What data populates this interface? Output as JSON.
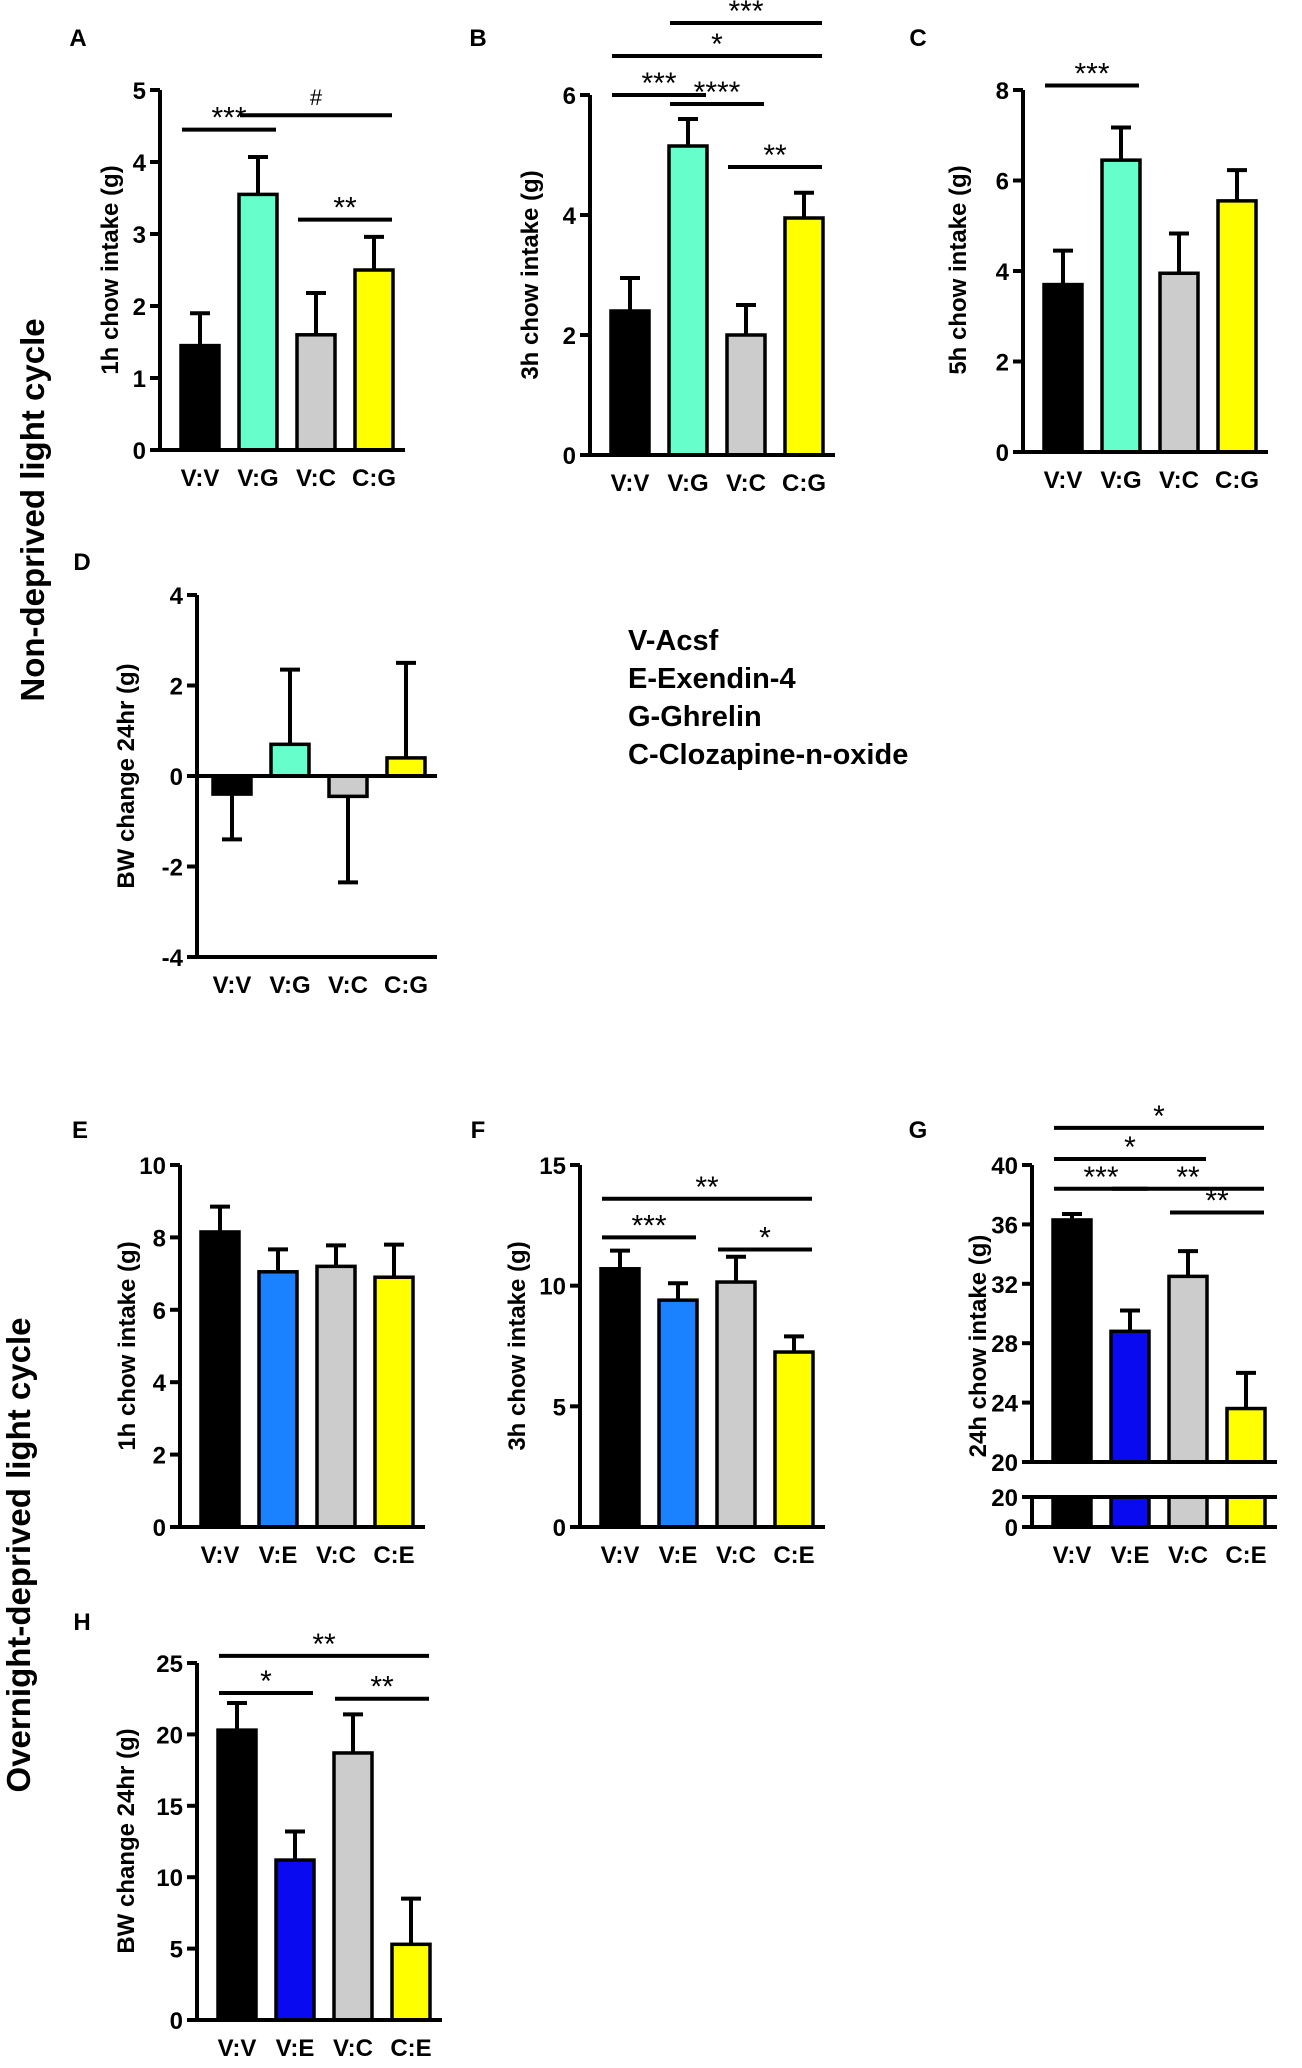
{
  "row_labels": [
    "Non-deprived light cycle",
    "Overnight-deprived light cycle"
  ],
  "legend": [
    "V-Acsf",
    "E-Exendin-4",
    "G-Ghrelin",
    "C-Clozapine-n-oxide"
  ],
  "chart_data": [
    {
      "id": "A",
      "type": "bar",
      "panel_label": "A",
      "ylabel": "1h chow intake (g)",
      "ylim": [
        0,
        5
      ],
      "yticks": [
        0,
        1,
        2,
        3,
        4,
        5
      ],
      "ytick_labels": [
        "0",
        "1",
        "2",
        "3",
        "4",
        "5"
      ],
      "categories": [
        "V:V",
        "V:G",
        "V:C",
        "C:G"
      ],
      "values": [
        1.45,
        3.55,
        1.6,
        2.5
      ],
      "errors": [
        0.45,
        0.52,
        0.58,
        0.46
      ],
      "colors": [
        "#000000",
        "#66ffcc",
        "#cccccc",
        "#ffff00"
      ],
      "annotations": [
        {
          "from": 0,
          "to": 1,
          "y": 4.45,
          "label": "***"
        },
        {
          "from": 1,
          "to": 3,
          "y": 4.65,
          "label": "#"
        },
        {
          "from": 2,
          "to": 3,
          "y": 3.2,
          "label": "**"
        }
      ]
    },
    {
      "id": "B",
      "type": "bar",
      "panel_label": "B",
      "ylabel": "3h chow intake (g)",
      "ylim": [
        0,
        6
      ],
      "yticks": [
        0,
        2,
        4,
        6
      ],
      "ytick_labels": [
        "0",
        "2",
        "4",
        "6"
      ],
      "categories": [
        "V:V",
        "V:G",
        "V:C",
        "C:G"
      ],
      "values": [
        2.4,
        5.15,
        2.0,
        3.95
      ],
      "errors": [
        0.55,
        0.45,
        0.5,
        0.42
      ],
      "colors": [
        "#000000",
        "#66ffcc",
        "#cccccc",
        "#ffff00"
      ],
      "annotations": [
        {
          "from": 0,
          "to": 1,
          "y": 6.0,
          "label": "***"
        },
        {
          "from": 1,
          "to": 2,
          "y": 5.85,
          "label": "****"
        },
        {
          "from": 2,
          "to": 3,
          "y": 4.8,
          "label": "**"
        },
        {
          "from": 0,
          "to": 3,
          "y": 6.65,
          "label": "*"
        },
        {
          "from": 1,
          "to": 3,
          "y": 7.2,
          "label": "***"
        }
      ]
    },
    {
      "id": "C",
      "type": "bar",
      "panel_label": "C",
      "ylabel": "5h chow intake (g)",
      "ylim": [
        0,
        8
      ],
      "yticks": [
        0,
        2,
        4,
        6,
        8
      ],
      "ytick_labels": [
        "0",
        "2",
        "4",
        "6",
        "8"
      ],
      "categories": [
        "V:V",
        "V:G",
        "V:C",
        "C:G"
      ],
      "values": [
        3.7,
        6.45,
        3.95,
        5.55
      ],
      "errors": [
        0.75,
        0.72,
        0.88,
        0.68
      ],
      "colors": [
        "#000000",
        "#66ffcc",
        "#cccccc",
        "#ffff00"
      ],
      "annotations": [
        {
          "from": 0,
          "to": 1,
          "y": 8.1,
          "label": "***"
        }
      ]
    },
    {
      "id": "D",
      "type": "bar",
      "panel_label": "D",
      "ylabel": "BW change 24hr (g)",
      "ylim": [
        -4,
        4
      ],
      "yticks": [
        -4,
        -2,
        0,
        2,
        4
      ],
      "ytick_labels": [
        "-4",
        "-2",
        "0",
        "2",
        "4"
      ],
      "categories": [
        "V:V",
        "V:G",
        "V:C",
        "C:G"
      ],
      "values": [
        -0.4,
        0.7,
        -0.45,
        0.4
      ],
      "errors": [
        1.0,
        1.65,
        1.9,
        2.1
      ],
      "colors": [
        "#000000",
        "#66ffcc",
        "#cccccc",
        "#ffff00"
      ],
      "annotations": []
    },
    {
      "id": "E",
      "type": "bar",
      "panel_label": "E",
      "ylabel": "1h chow intake (g)",
      "ylim": [
        0,
        10
      ],
      "yticks": [
        0,
        2,
        4,
        6,
        8,
        10
      ],
      "ytick_labels": [
        "0",
        "2",
        "4",
        "6",
        "8",
        "10"
      ],
      "categories": [
        "V:V",
        "V:E",
        "V:C",
        "C:E"
      ],
      "values": [
        8.15,
        7.05,
        7.2,
        6.9
      ],
      "errors": [
        0.7,
        0.62,
        0.58,
        0.9
      ],
      "colors": [
        "#000000",
        "#1a82ff",
        "#cccccc",
        "#ffff00"
      ],
      "annotations": []
    },
    {
      "id": "F",
      "type": "bar",
      "panel_label": "F",
      "ylabel": "3h chow intake (g)",
      "ylim": [
        0,
        15
      ],
      "yticks": [
        0,
        5,
        10,
        15
      ],
      "ytick_labels": [
        "0",
        "5",
        "10",
        "15"
      ],
      "categories": [
        "V:V",
        "V:E",
        "V:C",
        "C:E"
      ],
      "values": [
        10.7,
        9.4,
        10.15,
        7.25
      ],
      "errors": [
        0.75,
        0.7,
        1.05,
        0.65
      ],
      "colors": [
        "#000000",
        "#1a82ff",
        "#cccccc",
        "#ffff00"
      ],
      "annotations": [
        {
          "from": 0,
          "to": 1,
          "y": 12.0,
          "label": "***"
        },
        {
          "from": 2,
          "to": 3,
          "y": 11.5,
          "label": "*"
        },
        {
          "from": 0,
          "to": 3,
          "y": 13.6,
          "label": "**"
        }
      ]
    },
    {
      "id": "G",
      "type": "bar",
      "panel_label": "G",
      "ylabel": "24h chow intake (g)",
      "ylim": [
        20,
        40
      ],
      "yticks": [
        20,
        24,
        28,
        32,
        36,
        40
      ],
      "ytick_labels": [
        "20",
        "24",
        "28",
        "32",
        "36",
        "40"
      ],
      "axis_break": true,
      "lower_tick_labels": [
        "0",
        "20"
      ],
      "categories": [
        "V:V",
        "V:E",
        "V:C",
        "C:E"
      ],
      "values": [
        36.3,
        28.8,
        32.5,
        23.6
      ],
      "errors": [
        0.4,
        1.4,
        1.7,
        2.4
      ],
      "colors": [
        "#000000",
        "#0a0af0",
        "#cccccc",
        "#ffff00"
      ],
      "annotations": [
        {
          "from": 0,
          "to": 1,
          "y": 38.4,
          "label": "***"
        },
        {
          "from": 1,
          "to": 3,
          "y": 38.4,
          "label": "**"
        },
        {
          "from": 2,
          "to": 3,
          "y": 36.8,
          "label": "**"
        },
        {
          "from": 0,
          "to": 2,
          "y": 40.4,
          "label": "*"
        },
        {
          "from": 0,
          "to": 3,
          "y": 42.5,
          "label": "*"
        }
      ]
    },
    {
      "id": "H",
      "type": "bar",
      "panel_label": "H",
      "ylabel": "BW change 24hr (g)",
      "ylim": [
        0,
        25
      ],
      "yticks": [
        0,
        5,
        10,
        15,
        20,
        25
      ],
      "ytick_labels": [
        "0",
        "5",
        "10",
        "15",
        "20",
        "25"
      ],
      "categories": [
        "V:V",
        "V:E",
        "V:C",
        "C:E"
      ],
      "values": [
        20.3,
        11.2,
        18.7,
        5.3
      ],
      "errors": [
        1.9,
        2.0,
        2.7,
        3.2
      ],
      "colors": [
        "#000000",
        "#0a0af0",
        "#cccccc",
        "#ffff00"
      ],
      "annotations": [
        {
          "from": 0,
          "to": 1,
          "y": 22.9,
          "label": "*"
        },
        {
          "from": 2,
          "to": 3,
          "y": 22.5,
          "label": "**"
        },
        {
          "from": 0,
          "to": 3,
          "y": 25.5,
          "label": "**"
        }
      ]
    }
  ]
}
